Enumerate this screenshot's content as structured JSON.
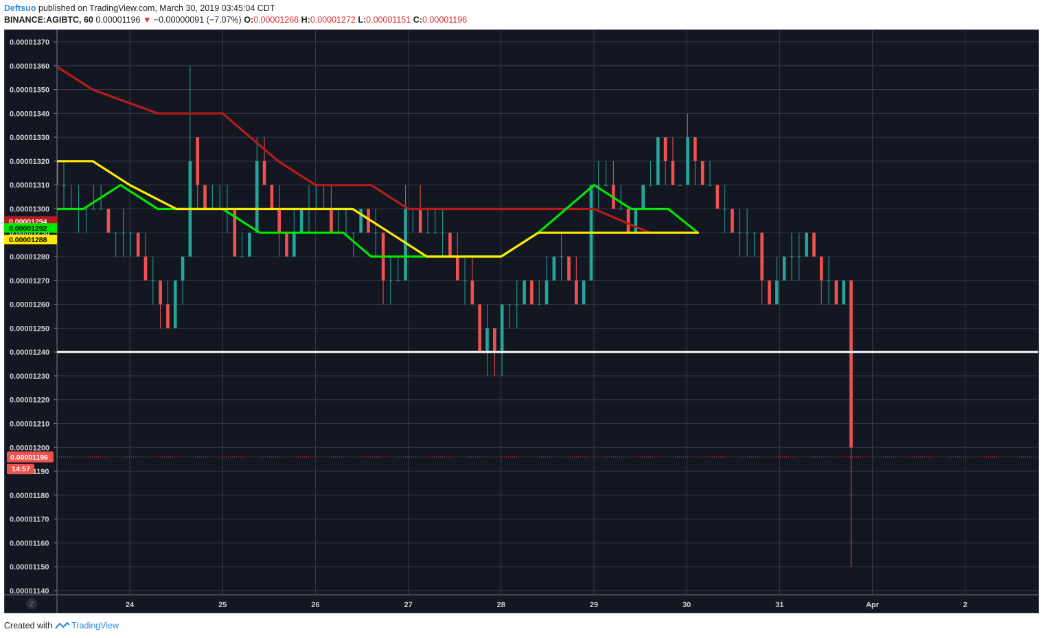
{
  "header": {
    "author": "Deftsuo",
    "published_text": "published on TradingView.com, March 30, 2019 03:45:04 CDT",
    "symbol": "BINANCE:AGIBTC, 60",
    "last": "0.00001196",
    "change": "−0.00000091 (−7.07%)",
    "o_label": "O:",
    "o_value": "0.00001266",
    "h_label": "H:",
    "h_value": "0.00001272",
    "l_label": "L:",
    "l_value": "0.00001151",
    "c_label": "C:",
    "c_value": "0.00001196"
  },
  "footer": {
    "created_with": "Created with",
    "brand": "TradingView"
  },
  "colors": {
    "background": "#131722",
    "grid": "#363a45",
    "up": "#26a69a",
    "down": "#ef5350",
    "ma_dark_red": "#b71c1c",
    "ma_green": "#00e600",
    "ma_yellow": "#ffea00",
    "support_line": "#ffffff",
    "axis_text": "#d1d4dc"
  },
  "chart_data": {
    "type": "candlestick",
    "symbol": "BINANCE:AGIBTC",
    "interval": "60",
    "y_range": [
      1.14e-05,
      1.37e-05
    ],
    "y_ticks": [
      "0.00001370",
      "0.00001360",
      "0.00001350",
      "0.00001340",
      "0.00001330",
      "0.00001320",
      "0.00001310",
      "0.00001300",
      "0.00001290",
      "0.00001280",
      "0.00001270",
      "0.00001260",
      "0.00001250",
      "0.00001240",
      "0.00001230",
      "0.00001220",
      "0.00001210",
      "0.00001200",
      "0.00001190",
      "0.00001180",
      "0.00001170",
      "0.00001160",
      "0.00001150",
      "0.00001140"
    ],
    "y_tick_values": [
      1.37e-05,
      1.36e-05,
      1.35e-05,
      1.34e-05,
      1.33e-05,
      1.32e-05,
      1.31e-05,
      1.3e-05,
      1.29e-05,
      1.28e-05,
      1.27e-05,
      1.26e-05,
      1.25e-05,
      1.24e-05,
      1.23e-05,
      1.22e-05,
      1.21e-05,
      1.2e-05,
      1.19e-05,
      1.18e-05,
      1.17e-05,
      1.16e-05,
      1.15e-05,
      1.14e-05
    ],
    "x_range_days": [
      23.2,
      2.78
    ],
    "x_ticks": [
      {
        "label": "24",
        "day": 24
      },
      {
        "label": "25",
        "day": 25
      },
      {
        "label": "26",
        "day": 26
      },
      {
        "label": "27",
        "day": 27
      },
      {
        "label": "28",
        "day": 28
      },
      {
        "label": "29",
        "day": 29
      },
      {
        "label": "30",
        "day": 30
      },
      {
        "label": "31",
        "day": 31
      },
      {
        "label": "Apr",
        "day": 32
      },
      {
        "label": "2",
        "day": 33
      }
    ],
    "z_label": "Z",
    "support_level": 1.24e-05,
    "current_price": "0.00001196",
    "current_price_value": 1.196e-05,
    "countdown": "14:57",
    "ma_labels": [
      {
        "value": "0.00001294",
        "color": "#b71c1c",
        "price": 1.294e-05
      },
      {
        "value": "0.00001292",
        "color": "#00e600",
        "price": 1.292e-05
      },
      {
        "value": "0.00001288",
        "color": "#ffea00",
        "price": 1.288e-05
      }
    ],
    "moving_averages": [
      {
        "color": "#b71c1c",
        "points": [
          [
            23.2,
            1.36e-05
          ],
          [
            23.6,
            1.35e-05
          ],
          [
            24.3,
            1.34e-05
          ],
          [
            25,
            1.34e-05
          ],
          [
            25.6,
            1.32e-05
          ],
          [
            26,
            1.31e-05
          ],
          [
            26.6,
            1.31e-05
          ],
          [
            27,
            1.3e-05
          ],
          [
            27.5,
            1.3e-05
          ],
          [
            28,
            1.3e-05
          ],
          [
            28.5,
            1.3e-05
          ],
          [
            29,
            1.3e-05
          ],
          [
            29.6,
            1.29e-05
          ],
          [
            30.12,
            1.29e-05
          ]
        ]
      },
      {
        "color": "#00e600",
        "points": [
          [
            23.2,
            1.3e-05
          ],
          [
            23.5,
            1.3e-05
          ],
          [
            23.9,
            1.31e-05
          ],
          [
            24.3,
            1.3e-05
          ],
          [
            24.7,
            1.3e-05
          ],
          [
            25,
            1.3e-05
          ],
          [
            25.4,
            1.29e-05
          ],
          [
            25.8,
            1.29e-05
          ],
          [
            26,
            1.29e-05
          ],
          [
            26.3,
            1.29e-05
          ],
          [
            26.6,
            1.28e-05
          ],
          [
            27,
            1.28e-05
          ],
          [
            27.3,
            1.28e-05
          ],
          [
            27.7,
            1.28e-05
          ],
          [
            28,
            1.28e-05
          ],
          [
            28.4,
            1.29e-05
          ],
          [
            28.7,
            1.3e-05
          ],
          [
            29,
            1.31e-05
          ],
          [
            29.4,
            1.3e-05
          ],
          [
            29.8,
            1.3e-05
          ],
          [
            30.12,
            1.29e-05
          ]
        ]
      },
      {
        "color": "#ffea00",
        "points": [
          [
            23.2,
            1.32e-05
          ],
          [
            23.6,
            1.32e-05
          ],
          [
            24,
            1.31e-05
          ],
          [
            24.5,
            1.3e-05
          ],
          [
            25,
            1.3e-05
          ],
          [
            25.5,
            1.3e-05
          ],
          [
            26,
            1.3e-05
          ],
          [
            26.4,
            1.3e-05
          ],
          [
            26.8,
            1.29e-05
          ],
          [
            27.2,
            1.28e-05
          ],
          [
            27.6,
            1.28e-05
          ],
          [
            28,
            1.28e-05
          ],
          [
            28.4,
            1.29e-05
          ],
          [
            28.8,
            1.29e-05
          ],
          [
            29.3,
            1.29e-05
          ],
          [
            29.8,
            1.29e-05
          ],
          [
            30.12,
            1.29e-05
          ]
        ]
      }
    ],
    "candles": [
      [
        23.21,
        1.32e-05,
        1.32e-05,
        1.31e-05,
        1.31e-05
      ],
      [
        23.29,
        1.31e-05,
        1.32e-05,
        1.3e-05,
        1.31e-05
      ],
      [
        23.37,
        1.3e-05,
        1.31e-05,
        1.3e-05,
        1.3e-05
      ],
      [
        23.45,
        1.3e-05,
        1.31e-05,
        1.29e-05,
        1.3e-05
      ],
      [
        23.53,
        1.3e-05,
        1.3e-05,
        1.29e-05,
        1.3e-05
      ],
      [
        23.61,
        1.3e-05,
        1.31e-05,
        1.3e-05,
        1.3e-05
      ],
      [
        23.69,
        1.3e-05,
        1.31e-05,
        1.3e-05,
        1.3e-05
      ],
      [
        23.77,
        1.3e-05,
        1.3e-05,
        1.29e-05,
        1.29e-05
      ],
      [
        23.85,
        1.29e-05,
        1.29e-05,
        1.28e-05,
        1.29e-05
      ],
      [
        23.93,
        1.29e-05,
        1.3e-05,
        1.28e-05,
        1.29e-05
      ],
      [
        24.01,
        1.29e-05,
        1.29e-05,
        1.28e-05,
        1.29e-05
      ],
      [
        24.09,
        1.29e-05,
        1.29e-05,
        1.28e-05,
        1.28e-05
      ],
      [
        24.17,
        1.28e-05,
        1.29e-05,
        1.27e-05,
        1.27e-05
      ],
      [
        24.25,
        1.27e-05,
        1.28e-05,
        1.26e-05,
        1.27e-05
      ],
      [
        24.33,
        1.27e-05,
        1.27e-05,
        1.25e-05,
        1.26e-05
      ],
      [
        24.41,
        1.26e-05,
        1.27e-05,
        1.25e-05,
        1.25e-05
      ],
      [
        24.49,
        1.25e-05,
        1.27e-05,
        1.25e-05,
        1.27e-05
      ],
      [
        24.57,
        1.27e-05,
        1.28e-05,
        1.26e-05,
        1.28e-05
      ],
      [
        24.65,
        1.28e-05,
        1.36e-05,
        1.28e-05,
        1.32e-05
      ],
      [
        24.73,
        1.33e-05,
        1.33e-05,
        1.3e-05,
        1.31e-05
      ],
      [
        24.81,
        1.31e-05,
        1.31e-05,
        1.3e-05,
        1.3e-05
      ],
      [
        24.89,
        1.3e-05,
        1.31e-05,
        1.3e-05,
        1.3e-05
      ],
      [
        24.97,
        1.3e-05,
        1.31e-05,
        1.3e-05,
        1.3e-05
      ],
      [
        25.05,
        1.3e-05,
        1.31e-05,
        1.29e-05,
        1.3e-05
      ],
      [
        25.13,
        1.3e-05,
        1.3e-05,
        1.28e-05,
        1.28e-05
      ],
      [
        25.21,
        1.28e-05,
        1.29e-05,
        1.28e-05,
        1.28e-05
      ],
      [
        25.29,
        1.28e-05,
        1.29e-05,
        1.28e-05,
        1.29e-05
      ],
      [
        25.37,
        1.29e-05,
        1.33e-05,
        1.29e-05,
        1.32e-05
      ],
      [
        25.45,
        1.32e-05,
        1.33e-05,
        1.31e-05,
        1.31e-05
      ],
      [
        25.53,
        1.31e-05,
        1.31e-05,
        1.3e-05,
        1.3e-05
      ],
      [
        25.61,
        1.3e-05,
        1.31e-05,
        1.28e-05,
        1.29e-05
      ],
      [
        25.69,
        1.29e-05,
        1.29e-05,
        1.28e-05,
        1.28e-05
      ],
      [
        25.77,
        1.28e-05,
        1.3e-05,
        1.28e-05,
        1.29e-05
      ],
      [
        25.85,
        1.29e-05,
        1.3e-05,
        1.29e-05,
        1.3e-05
      ],
      [
        25.93,
        1.3e-05,
        1.31e-05,
        1.29e-05,
        1.3e-05
      ],
      [
        26.01,
        1.3e-05,
        1.31e-05,
        1.3e-05,
        1.3e-05
      ],
      [
        26.09,
        1.3e-05,
        1.31e-05,
        1.3e-05,
        1.3e-05
      ],
      [
        26.17,
        1.3e-05,
        1.31e-05,
        1.29e-05,
        1.29e-05
      ],
      [
        26.25,
        1.29e-05,
        1.3e-05,
        1.29e-05,
        1.29e-05
      ],
      [
        26.33,
        1.29e-05,
        1.3e-05,
        1.29e-05,
        1.29e-05
      ],
      [
        26.41,
        1.29e-05,
        1.29e-05,
        1.28e-05,
        1.29e-05
      ],
      [
        26.49,
        1.29e-05,
        1.3e-05,
        1.29e-05,
        1.3e-05
      ],
      [
        26.57,
        1.3e-05,
        1.3e-05,
        1.29e-05,
        1.29e-05
      ],
      [
        26.65,
        1.29e-05,
        1.3e-05,
        1.28e-05,
        1.29e-05
      ],
      [
        26.73,
        1.29e-05,
        1.29e-05,
        1.26e-05,
        1.27e-05
      ],
      [
        26.81,
        1.27e-05,
        1.28e-05,
        1.26e-05,
        1.27e-05
      ],
      [
        26.89,
        1.27e-05,
        1.28e-05,
        1.27e-05,
        1.27e-05
      ],
      [
        26.97,
        1.27e-05,
        1.31e-05,
        1.27e-05,
        1.3e-05
      ],
      [
        27.05,
        1.3e-05,
        1.3e-05,
        1.29e-05,
        1.3e-05
      ],
      [
        27.13,
        1.3e-05,
        1.31e-05,
        1.29e-05,
        1.29e-05
      ],
      [
        27.21,
        1.29e-05,
        1.3e-05,
        1.29e-05,
        1.29e-05
      ],
      [
        27.29,
        1.29e-05,
        1.3e-05,
        1.29e-05,
        1.29e-05
      ],
      [
        27.37,
        1.29e-05,
        1.3e-05,
        1.28e-05,
        1.29e-05
      ],
      [
        27.45,
        1.29e-05,
        1.29e-05,
        1.28e-05,
        1.28e-05
      ],
      [
        27.53,
        1.28e-05,
        1.29e-05,
        1.27e-05,
        1.27e-05
      ],
      [
        27.61,
        1.27e-05,
        1.28e-05,
        1.26e-05,
        1.27e-05
      ],
      [
        27.69,
        1.27e-05,
        1.28e-05,
        1.26e-05,
        1.26e-05
      ],
      [
        27.77,
        1.26e-05,
        1.26e-05,
        1.24e-05,
        1.24e-05
      ],
      [
        27.85,
        1.24e-05,
        1.26e-05,
        1.23e-05,
        1.25e-05
      ],
      [
        27.93,
        1.25e-05,
        1.25e-05,
        1.23e-05,
        1.24e-05
      ],
      [
        28.01,
        1.24e-05,
        1.26e-05,
        1.23e-05,
        1.26e-05
      ],
      [
        28.09,
        1.26e-05,
        1.26e-05,
        1.25e-05,
        1.26e-05
      ],
      [
        28.17,
        1.26e-05,
        1.27e-05,
        1.25e-05,
        1.26e-05
      ],
      [
        28.25,
        1.26e-05,
        1.27e-05,
        1.26e-05,
        1.27e-05
      ],
      [
        28.33,
        1.27e-05,
        1.27e-05,
        1.26e-05,
        1.26e-05
      ],
      [
        28.41,
        1.26e-05,
        1.27e-05,
        1.26e-05,
        1.26e-05
      ],
      [
        28.49,
        1.26e-05,
        1.28e-05,
        1.26e-05,
        1.27e-05
      ],
      [
        28.57,
        1.27e-05,
        1.28e-05,
        1.27e-05,
        1.28e-05
      ],
      [
        28.65,
        1.28e-05,
        1.29e-05,
        1.27e-05,
        1.28e-05
      ],
      [
        28.73,
        1.28e-05,
        1.28e-05,
        1.27e-05,
        1.27e-05
      ],
      [
        28.81,
        1.27e-05,
        1.28e-05,
        1.26e-05,
        1.26e-05
      ],
      [
        28.89,
        1.26e-05,
        1.27e-05,
        1.26e-05,
        1.27e-05
      ],
      [
        28.97,
        1.27e-05,
        1.31e-05,
        1.27e-05,
        1.31e-05
      ],
      [
        29.05,
        1.31e-05,
        1.32e-05,
        1.3e-05,
        1.31e-05
      ],
      [
        29.13,
        1.31e-05,
        1.32e-05,
        1.31e-05,
        1.31e-05
      ],
      [
        29.21,
        1.31e-05,
        1.32e-05,
        1.3e-05,
        1.3e-05
      ],
      [
        29.29,
        1.3e-05,
        1.31e-05,
        1.3e-05,
        1.3e-05
      ],
      [
        29.37,
        1.3e-05,
        1.3e-05,
        1.29e-05,
        1.29e-05
      ],
      [
        29.45,
        1.29e-05,
        1.3e-05,
        1.29e-05,
        1.3e-05
      ],
      [
        29.53,
        1.3e-05,
        1.31e-05,
        1.3e-05,
        1.31e-05
      ],
      [
        29.61,
        1.31e-05,
        1.32e-05,
        1.31e-05,
        1.31e-05
      ],
      [
        29.69,
        1.31e-05,
        1.33e-05,
        1.31e-05,
        1.33e-05
      ],
      [
        29.77,
        1.33e-05,
        1.33e-05,
        1.31e-05,
        1.32e-05
      ],
      [
        29.85,
        1.32e-05,
        1.33e-05,
        1.31e-05,
        1.31e-05
      ],
      [
        29.93,
        1.31e-05,
        1.31e-05,
        1.31e-05,
        1.31e-05
      ],
      [
        30.01,
        1.31e-05,
        1.34e-05,
        1.31e-05,
        1.33e-05
      ],
      [
        30.09,
        1.33e-05,
        1.33e-05,
        1.31e-05,
        1.32e-05
      ],
      [
        30.17,
        1.32e-05,
        1.32e-05,
        1.31e-05,
        1.31e-05
      ],
      [
        30.25,
        1.31e-05,
        1.32e-05,
        1.31e-05,
        1.31e-05
      ],
      [
        30.33,
        1.31e-05,
        1.31e-05,
        1.3e-05,
        1.3e-05
      ],
      [
        30.41,
        1.3e-05,
        1.31e-05,
        1.29e-05,
        1.3e-05
      ],
      [
        30.49,
        1.3e-05,
        1.3e-05,
        1.29e-05,
        1.29e-05
      ],
      [
        30.57,
        1.29e-05,
        1.3e-05,
        1.28e-05,
        1.29e-05
      ],
      [
        30.65,
        1.29e-05,
        1.3e-05,
        1.28e-05,
        1.29e-05
      ],
      [
        30.73,
        1.29e-05,
        1.29e-05,
        1.28e-05,
        1.29e-05
      ],
      [
        30.81,
        1.29e-05,
        1.29e-05,
        1.26e-05,
        1.27e-05
      ],
      [
        30.89,
        1.27e-05,
        1.27e-05,
        1.26e-05,
        1.26e-05
      ],
      [
        30.97,
        1.26e-05,
        1.28e-05,
        1.26e-05,
        1.27e-05
      ],
      [
        31.05,
        1.27e-05,
        1.28e-05,
        1.27e-05,
        1.28e-05
      ],
      [
        31.13,
        1.28e-05,
        1.29e-05,
        1.27e-05,
        1.28e-05
      ],
      [
        31.21,
        1.28e-05,
        1.29e-05,
        1.27e-05,
        1.28e-05
      ],
      [
        31.29,
        1.28e-05,
        1.29e-05,
        1.28e-05,
        1.29e-05
      ],
      [
        31.37,
        1.29e-05,
        1.29e-05,
        1.28e-05,
        1.28e-05
      ],
      [
        31.45,
        1.28e-05,
        1.28e-05,
        1.26e-05,
        1.27e-05
      ],
      [
        31.53,
        1.27e-05,
        1.28e-05,
        1.26e-05,
        1.27e-05
      ],
      [
        31.61,
        1.27e-05,
        1.27e-05,
        1.26e-05,
        1.26e-05
      ],
      [
        31.69,
        1.26e-05,
        1.27e-05,
        1.26e-05,
        1.27e-05
      ],
      [
        31.77,
        1.27e-05,
        1.27e-05,
        1.15e-05,
        1.2e-05
      ]
    ]
  }
}
